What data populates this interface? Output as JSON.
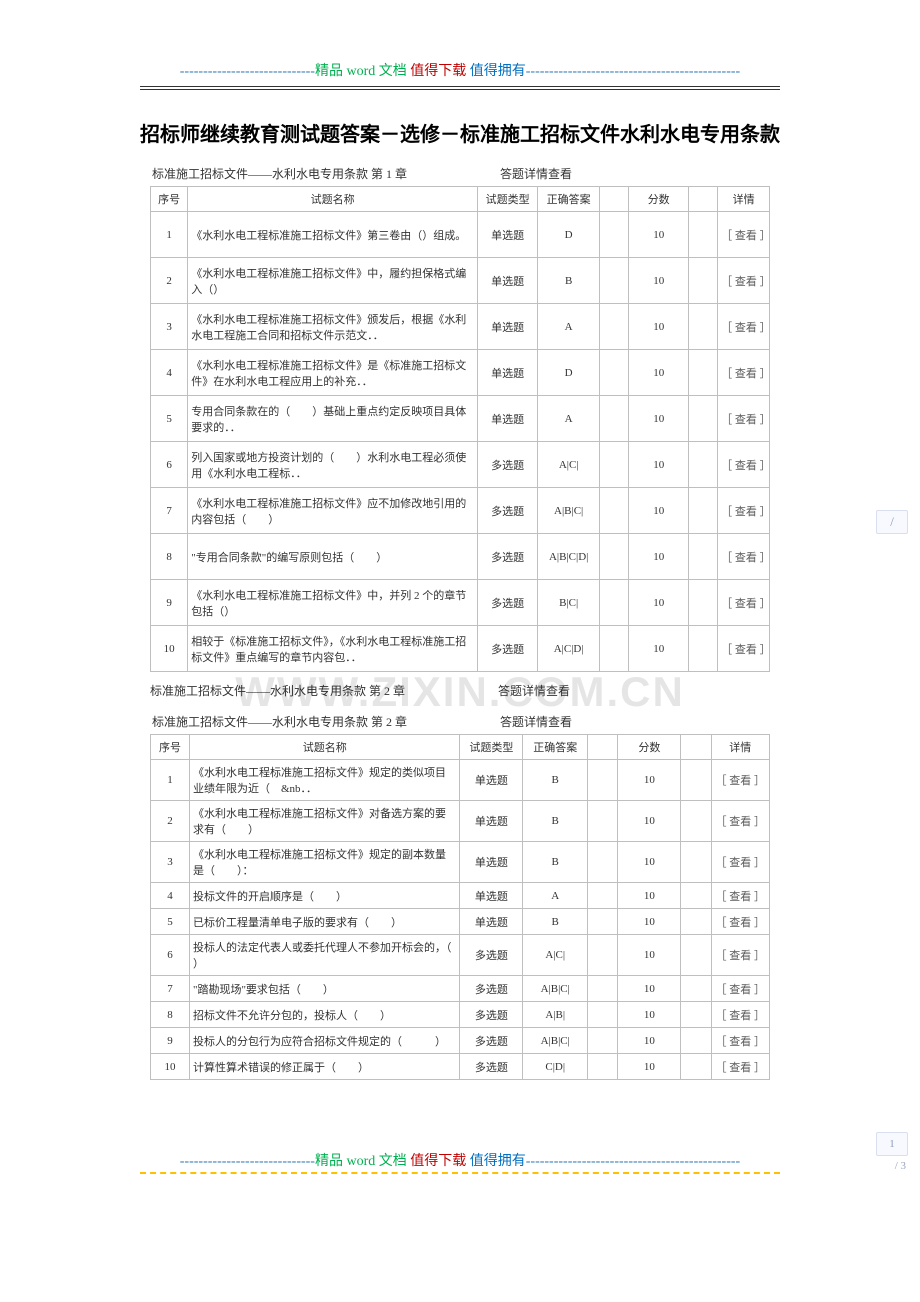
{
  "header": {
    "dash_prefix": "-----------------------------",
    "part1": "精品 word 文档",
    "part2": "值得下载",
    "part3": "值得拥有",
    "dash_suffix": "----------------------------------------------"
  },
  "doc_title": "招标师继续教育测试题答案－选修－标准施工招标文件水利水电专用条款",
  "watermark": "WWW.ZIXIN.COM.CN",
  "section1_caption_left": "标准施工招标文件——水利水电专用条款 第 1 章",
  "section1_caption_right": "答题详情查看",
  "mid_caption_left": "标准施工招标文件——水利水电专用条款 第 2 章",
  "mid_caption_right": "答题详情查看",
  "section2_caption_left": "标准施工招标文件——水利水电专用条款 第 2 章",
  "section2_caption_right": "答题详情查看",
  "columns": {
    "seq": "序号",
    "name": "试题名称",
    "type": "试题类型",
    "answer": "正确答案",
    "score": "分数",
    "detail": "详情"
  },
  "view_label": "［ 查看 ］",
  "table1": {
    "rows": [
      {
        "seq": "1",
        "name": "《水利水电工程标准施工招标文件》第三卷由（）组成。",
        "type": "单选题",
        "answer": "D",
        "score": "10"
      },
      {
        "seq": "2",
        "name": "《水利水电工程标准施工招标文件》中，履约担保格式编入（）",
        "type": "单选题",
        "answer": "B",
        "score": "10"
      },
      {
        "seq": "3",
        "name": "《水利水电工程标准施工招标文件》颁发后，根据《水利水电工程施工合同和招标文件示范文．．",
        "type": "单选题",
        "answer": "A",
        "score": "10"
      },
      {
        "seq": "4",
        "name": "《水利水电工程标准施工招标文件》是《标准施工招标文件》在水利水电工程应用上的补充．．",
        "type": "单选题",
        "answer": "D",
        "score": "10"
      },
      {
        "seq": "5",
        "name": "专用合同条款在的（　　）基础上重点约定反映项目具体要求的．．",
        "type": "单选题",
        "answer": "A",
        "score": "10"
      },
      {
        "seq": "6",
        "name": "列入国家或地方投资计划的（　　）水利水电工程必须使用《水利水电工程标．．",
        "type": "多选题",
        "answer": "A|C|",
        "score": "10"
      },
      {
        "seq": "7",
        "name": "《水利水电工程标准施工招标文件》应不加修改地引用的内容包括（　　）",
        "type": "多选题",
        "answer": "A|B|C|",
        "score": "10"
      },
      {
        "seq": "8",
        "name": "\"专用合同条款\"的编写原则包括（　　）",
        "type": "多选题",
        "answer": "A|B|C|D|",
        "score": "10"
      },
      {
        "seq": "9",
        "name": "《水利水电工程标准施工招标文件》中，并列 2 个的章节包括（）",
        "type": "多选题",
        "answer": "B|C|",
        "score": "10"
      },
      {
        "seq": "10",
        "name": "相较于《标准施工招标文件》，《水利水电工程标准施工招标文件》重点编写的章节内容包．．",
        "type": "多选题",
        "answer": "A|C|D|",
        "score": "10"
      }
    ]
  },
  "table2": {
    "rows": [
      {
        "seq": "1",
        "name": "《水利水电工程标准施工招标文件》规定的类似项目业绩年限为近（　&nb．．",
        "type": "单选题",
        "answer": "B",
        "score": "10"
      },
      {
        "seq": "2",
        "name": "《水利水电工程标准施工招标文件》对备选方案的要求有（　　）",
        "type": "单选题",
        "answer": "B",
        "score": "10"
      },
      {
        "seq": "3",
        "name": "《水利水电工程标准施工招标文件》规定的副本数量是（　　）：",
        "type": "单选题",
        "answer": "B",
        "score": "10"
      },
      {
        "seq": "4",
        "name": "投标文件的开启顺序是（　　）",
        "type": "单选题",
        "answer": "A",
        "score": "10"
      },
      {
        "seq": "5",
        "name": "已标价工程量清单电子版的要求有（　　）",
        "type": "单选题",
        "answer": "B",
        "score": "10"
      },
      {
        "seq": "6",
        "name": "投标人的法定代表人或委托代理人不参加开标会的，（　　）",
        "type": "多选题",
        "answer": "A|C|",
        "score": "10"
      },
      {
        "seq": "7",
        "name": "\"踏勘现场\"要求包括（　　）",
        "type": "多选题",
        "answer": "A|B|C|",
        "score": "10"
      },
      {
        "seq": "8",
        "name": "招标文件不允许分包的，投标人（　　）",
        "type": "多选题",
        "answer": "A|B|",
        "score": "10"
      },
      {
        "seq": "9",
        "name": "投标人的分包行为应符合招标文件规定的（　　　）",
        "type": "多选题",
        "answer": "A|B|C|",
        "score": "10"
      },
      {
        "seq": "10",
        "name": "计算性算术错误的修正属于（　　）",
        "type": "多选题",
        "answer": "C|D|",
        "score": "10"
      }
    ]
  },
  "side": {
    "slash": "/",
    "pagenum": "1",
    "pagetotal": "/ 3"
  },
  "style": {
    "border_color": "#bfbfbf",
    "text_color": "#333",
    "watermark_color": "rgba(0,0,0,0.10)"
  }
}
